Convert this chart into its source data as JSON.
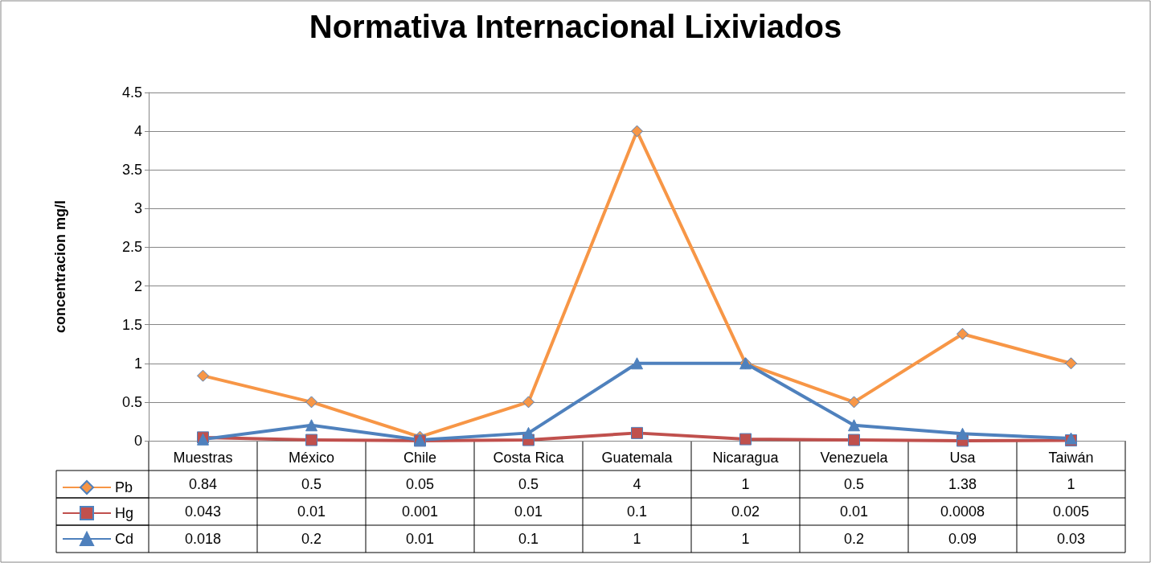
{
  "chart_data": {
    "type": "line",
    "title": "Normativa Internacional Lixiviados",
    "ylabel": "concentracion mg/l",
    "categories": [
      "Muestras",
      "México",
      "Chile",
      "Costa Rica",
      "Guatemala",
      "Nicaragua",
      "Venezuela",
      "Usa",
      "Taiwán"
    ],
    "series": [
      {
        "name": "Pb",
        "color": "#f79646",
        "marker": "diamond",
        "values": [
          0.84,
          0.5,
          0.05,
          0.5,
          4,
          1,
          0.5,
          1.38,
          1
        ]
      },
      {
        "name": "Hg",
        "color": "#c0504d",
        "marker": "square",
        "values": [
          0.043,
          0.01,
          0.001,
          0.01,
          0.1,
          0.02,
          0.01,
          0.0008,
          0.005
        ]
      },
      {
        "name": "Cd",
        "color": "#4f81bd",
        "marker": "triangle",
        "values": [
          0.018,
          0.2,
          0.01,
          0.1,
          1,
          1,
          0.2,
          0.09,
          0.03
        ]
      }
    ],
    "ylim": [
      0,
      4.5
    ],
    "yticks": [
      0,
      0.5,
      1,
      1.5,
      2,
      2.5,
      3,
      3.5,
      4,
      4.5
    ],
    "grid": "y",
    "legend": "bottom left",
    "data_labels": true
  }
}
